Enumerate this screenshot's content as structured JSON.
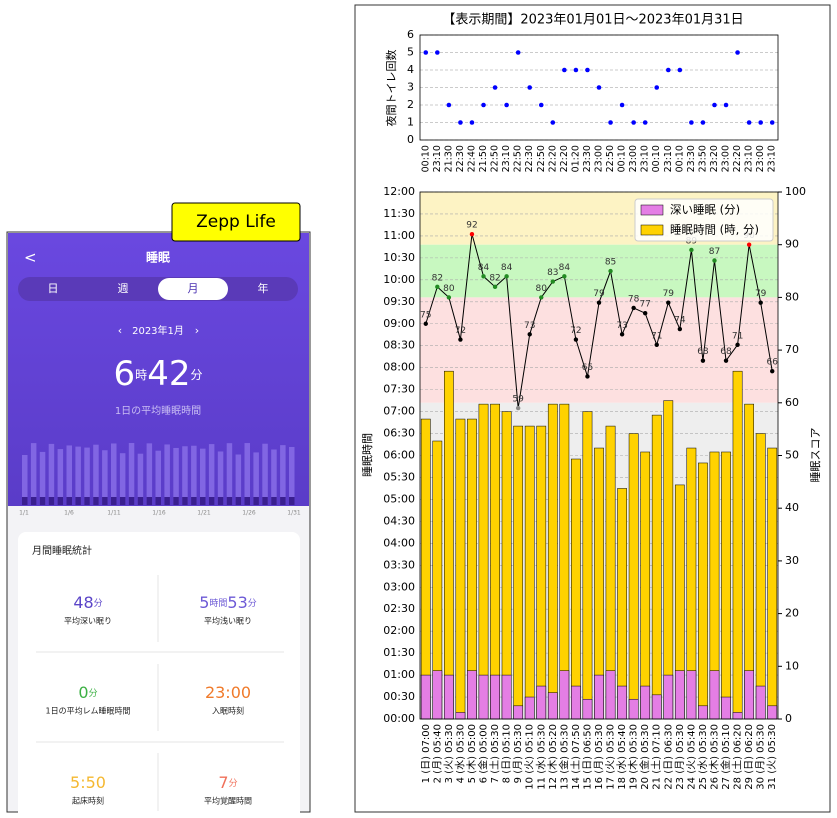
{
  "badge": "Zepp Life",
  "app_screen": {
    "back": "<",
    "title": "睡眠",
    "tabs": [
      "日",
      "週",
      "月",
      "年"
    ],
    "selected_tab": 2,
    "period": {
      "prev": "‹",
      "label": "2023年1月",
      "next": "›"
    },
    "average_time": [
      "6",
      "時",
      "42",
      "分"
    ],
    "average_label": "1日の平均睡眠時間",
    "mini_chart_labels": [
      "1/1",
      "1/6",
      "1/11",
      "1/16",
      "1/21",
      "1/26",
      "1/31"
    ],
    "card_title": "月間睡眠統計",
    "stats": [
      {
        "parts": [
          "48",
          "分"
        ],
        "label": "平均深い眠り",
        "color": "#5b45c8"
      },
      {
        "parts": [
          "5",
          "時間",
          "53",
          "分"
        ],
        "label": "平均浅い眠り",
        "color": "#6d5ad6"
      },
      {
        "parts": [
          "0",
          "分"
        ],
        "label": "1日の平均レム睡眠時間",
        "color": "#3cb043"
      },
      {
        "parts": [
          "23:00"
        ],
        "label": "入眠時刻",
        "color": "#f07a2a"
      },
      {
        "parts": [
          "5:50"
        ],
        "label": "起床時刻",
        "color": "#f5b830"
      },
      {
        "parts": [
          "7",
          "分"
        ],
        "label": "平均覚醒時間",
        "color": "#f0705a"
      }
    ]
  },
  "chart_data": [
    {
      "type": "scatter",
      "title": "【表示期間】2023年01月01日～2023年01月31日",
      "y_label": "夜間トイレ回数",
      "categories": [
        "00:10",
        "23:10",
        "21:30",
        "22:30",
        "22:40",
        "21:50",
        "22:50",
        "23:10",
        "22:50",
        "22:30",
        "22:50",
        "22:20",
        "22:20",
        "01:20",
        "23:30",
        "23:00",
        "22:50",
        "00:10",
        "23:00",
        "23:10",
        "00:10",
        "23:10",
        "00:10",
        "23:30",
        "23:50",
        "23:20",
        "23:00",
        "22:20",
        "23:10",
        "23:00",
        "23:10"
      ],
      "values": [
        5,
        5,
        2,
        1,
        1,
        2,
        3,
        2,
        5,
        3,
        2,
        1,
        4,
        4,
        4,
        3,
        1,
        2,
        1,
        1,
        3,
        4,
        4,
        1,
        1,
        2,
        2,
        5,
        1,
        1,
        1
      ],
      "color": "#0000ff",
      "ylim": [
        0,
        6
      ],
      "yticks": [
        0,
        1,
        2,
        3,
        4,
        5,
        6
      ],
      "grid": true
    },
    {
      "type": "bar_line",
      "y_label": "睡眠時間",
      "y2_label": "睡眠スコア",
      "categories": [
        "1 (日) 07:00",
        "2 (月) 05:40",
        "3 (火) 05:30",
        "4 (水) 05:30",
        "5 (木) 05:00",
        "6 (金) 05:00",
        "7 (土) 05:30",
        "8 (日) 05:10",
        "9 (月) 05:30",
        "10 (火) 05:10",
        "11 (水) 05:30",
        "12 (木) 05:20",
        "13 (金) 05:30",
        "14 (土) 07:50",
        "15 (日) 06:50",
        "16 (月) 05:30",
        "17 (火) 05:30",
        "18 (水) 05:40",
        "19 (木) 05:30",
        "20 (金) 05:30",
        "21 (土) 07:10",
        "22 (日) 06:30",
        "23 (月) 05:30",
        "24 (火) 05:40",
        "25 (水) 05:30",
        "26 (木) 05:30",
        "27 (金) 05:10",
        "28 (土) 06:20",
        "29 (日) 06:20",
        "30 (月) 05:30",
        "31 (火) 05:30"
      ],
      "series": [
        {
          "name": "深い睡眠 (分)",
          "color": "#e47ee4",
          "values": [
            1.0,
            1.1,
            1.0,
            0.15,
            1.1,
            1.0,
            1.0,
            1.0,
            0.3,
            0.5,
            0.75,
            0.6,
            1.1,
            0.75,
            0.45,
            1.0,
            1.1,
            0.75,
            0.45,
            0.75,
            0.55,
            1.0,
            1.1,
            1.1,
            0.3,
            1.1,
            0.5,
            0.15,
            1.1,
            0.75,
            0.3
          ]
        },
        {
          "name": "睡眠時間 (時, 分)",
          "color": "#ffd200",
          "values": [
            6.83,
            6.33,
            7.92,
            6.83,
            6.83,
            7.17,
            7.17,
            7.0,
            6.67,
            6.67,
            6.67,
            7.17,
            7.17,
            5.92,
            7.0,
            6.17,
            6.67,
            5.25,
            6.5,
            6.08,
            6.92,
            7.25,
            5.33,
            6.17,
            5.83,
            6.08,
            6.08,
            7.92,
            7.17,
            6.5,
            6.17
          ]
        }
      ],
      "score": {
        "axis": "y2",
        "color": "#000000",
        "values": [
          75,
          82,
          80,
          72,
          92,
          84,
          82,
          84,
          59,
          73,
          80,
          83,
          84,
          72,
          65,
          79,
          85,
          73,
          78,
          77,
          71,
          79,
          74,
          89,
          68,
          87,
          68,
          71,
          90,
          79,
          66
        ],
        "marker_colors": [
          "#000",
          "#228b22",
          "#228b22",
          "#000",
          "#ff0000",
          "#228b22",
          "#228b22",
          "#228b22",
          "#888",
          "#000",
          "#228b22",
          "#228b22",
          "#228b22",
          "#000",
          "#000",
          "#000",
          "#228b22",
          "#000",
          "#000",
          "#000",
          "#000",
          "#000",
          "#000",
          "#228b22",
          "#000",
          "#228b22",
          "#000",
          "#000",
          "#ff0000",
          "#000",
          "#000"
        ]
      },
      "bands": [
        {
          "from": 90,
          "to": 100,
          "color": "#fdf3c4"
        },
        {
          "from": 80,
          "to": 90,
          "color": "#c8f8c0"
        },
        {
          "from": 60,
          "to": 80,
          "color": "#fde0e0"
        },
        {
          "from": 0,
          "to": 60,
          "color": "#eeeeee"
        }
      ],
      "ylim": [
        0,
        12
      ],
      "yticks": [
        {
          "value": 0,
          "label": "00:00"
        },
        {
          "value": 0.5,
          "label": "00:30"
        },
        {
          "value": 1,
          "label": "01:00"
        },
        {
          "value": 1.5,
          "label": "01:30"
        },
        {
          "value": 2,
          "label": "02:00"
        },
        {
          "value": 2.5,
          "label": "02:30"
        },
        {
          "value": 3,
          "label": "03:00"
        },
        {
          "value": 3.5,
          "label": "03:30"
        },
        {
          "value": 4,
          "label": "04:00"
        },
        {
          "value": 4.5,
          "label": "04:30"
        },
        {
          "value": 5,
          "label": "05:00"
        },
        {
          "value": 5.5,
          "label": "05:30"
        },
        {
          "value": 6,
          "label": "06:00"
        },
        {
          "value": 6.5,
          "label": "06:30"
        },
        {
          "value": 7,
          "label": "07:00"
        },
        {
          "value": 7.5,
          "label": "07:30"
        },
        {
          "value": 8,
          "label": "08:00"
        },
        {
          "value": 8.5,
          "label": "08:30"
        },
        {
          "value": 9,
          "label": "09:00"
        },
        {
          "value": 9.5,
          "label": "09:30"
        },
        {
          "value": 10,
          "label": "10:00"
        },
        {
          "value": 10.5,
          "label": "10:30"
        },
        {
          "value": 11,
          "label": "11:00"
        },
        {
          "value": 11.5,
          "label": "11:30"
        },
        {
          "value": 12,
          "label": "12:00"
        }
      ],
      "y2lim": [
        0,
        100
      ],
      "y2ticks": [
        0,
        10,
        20,
        30,
        40,
        50,
        60,
        70,
        80,
        90,
        100
      ],
      "grid": true,
      "legend": "upper right"
    }
  ]
}
